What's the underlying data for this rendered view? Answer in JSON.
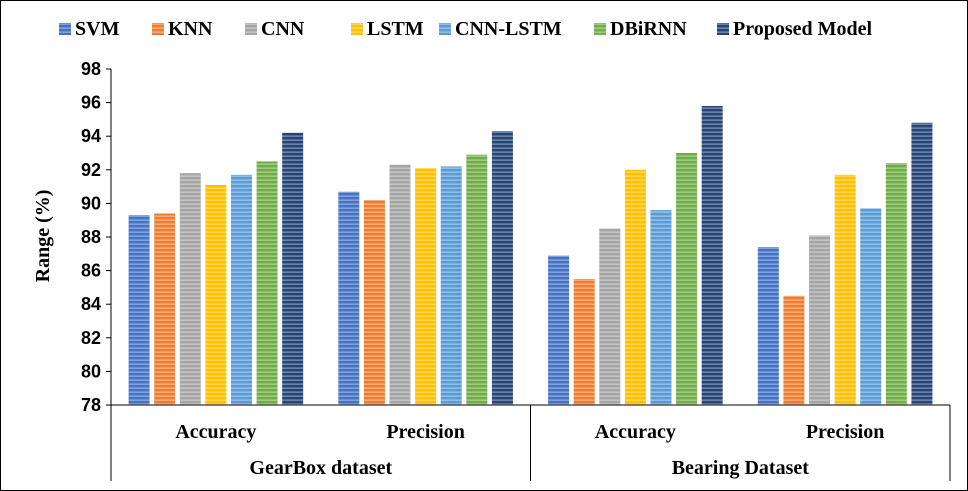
{
  "chart_data": {
    "type": "bar",
    "ylabel": "Range (%)",
    "ylim": [
      78,
      98
    ],
    "yticks": [
      "78",
      "80",
      "82",
      "84",
      "86",
      "88",
      "90",
      "92",
      "94",
      "96",
      "98"
    ],
    "grid": false,
    "legend_position": "top",
    "groups": [
      {
        "label": "GearBox dataset",
        "categories": [
          "Accuracy",
          "Precision"
        ]
      },
      {
        "label": "Bearing Dataset",
        "categories": [
          "Accuracy",
          "Precision"
        ]
      }
    ],
    "categories": [
      "Accuracy",
      "Precision",
      "Accuracy",
      "Precision"
    ],
    "series": [
      {
        "name": "SVM",
        "color": "#4472c4",
        "values": [
          89.3,
          90.7,
          86.9,
          87.4
        ]
      },
      {
        "name": "KNN",
        "color": "#ed7d31",
        "values": [
          89.4,
          90.2,
          85.5,
          84.5
        ]
      },
      {
        "name": "CNN",
        "color": "#a5a5a5",
        "values": [
          91.8,
          92.3,
          88.5,
          88.1
        ]
      },
      {
        "name": "LSTM",
        "color": "#ffc000",
        "values": [
          91.1,
          92.1,
          92.0,
          91.7
        ]
      },
      {
        "name": "CNN-LSTM",
        "color": "#5b9bd5",
        "values": [
          91.7,
          92.2,
          89.6,
          89.7
        ]
      },
      {
        "name": "DBiRNN",
        "color": "#70ad47",
        "values": [
          92.5,
          92.9,
          93.0,
          92.4
        ]
      },
      {
        "name": "Proposed Model",
        "color": "#264478",
        "values": [
          94.2,
          94.3,
          95.8,
          94.8
        ]
      }
    ]
  }
}
